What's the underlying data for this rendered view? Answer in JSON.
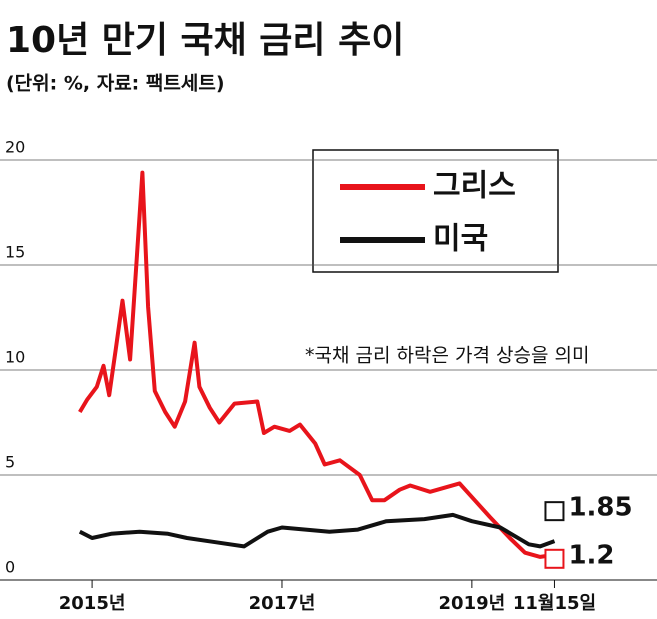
{
  "chart_data": {
    "type": "line",
    "title": "10년 만기 국채 금리 추이",
    "subtitle": "(단위: %, 자료: 팩트세트)",
    "annotation": "*국채 금리 하락은 가격 상승을 의미",
    "xlim": [
      2014.03,
      2020.95
    ],
    "ylim": [
      0,
      20
    ],
    "yticks": [
      0,
      5,
      10,
      15,
      20
    ],
    "xticks": [
      {
        "value": 2015,
        "label": "2015년"
      },
      {
        "value": 2017,
        "label": "2017년"
      },
      {
        "value": 2019,
        "label": "2019년"
      },
      {
        "value": 2019.87,
        "label": "11월15일"
      }
    ],
    "grid": true,
    "series": [
      {
        "name": "그리스",
        "color": "#e8141b",
        "fill": "#f0f0f0",
        "x": [
          2014.87,
          2014.95,
          2015.05,
          2015.12,
          2015.18,
          2015.25,
          2015.32,
          2015.4,
          2015.53,
          2015.59,
          2015.66,
          2015.77,
          2015.87,
          2015.98,
          2016.08,
          2016.13,
          2016.24,
          2016.34,
          2016.5,
          2016.74,
          2016.81,
          2016.92,
          2017.08,
          2017.19,
          2017.35,
          2017.45,
          2017.61,
          2017.82,
          2017.95,
          2018.08,
          2018.24,
          2018.35,
          2018.56,
          2018.87,
          2019.03,
          2019.19,
          2019.4,
          2019.56,
          2019.72,
          2019.87
        ],
        "values": [
          8.0,
          8.6,
          9.2,
          10.2,
          8.8,
          11.0,
          13.3,
          10.5,
          19.4,
          13.0,
          9.0,
          8.0,
          7.3,
          8.5,
          11.3,
          9.2,
          8.2,
          7.5,
          8.4,
          8.5,
          7.0,
          7.3,
          7.1,
          7.4,
          6.5,
          5.5,
          5.7,
          5.0,
          3.8,
          3.8,
          4.3,
          4.5,
          4.2,
          4.6,
          3.8,
          3.0,
          2.0,
          1.3,
          1.1,
          1.2
        ]
      },
      {
        "name": "미국",
        "color": "#111111",
        "x": [
          2014.87,
          2015.0,
          2015.2,
          2015.5,
          2015.8,
          2016.0,
          2016.3,
          2016.6,
          2016.85,
          2017.0,
          2017.5,
          2017.8,
          2018.1,
          2018.5,
          2018.8,
          2019.0,
          2019.3,
          2019.6,
          2019.72,
          2019.87
        ],
        "values": [
          2.3,
          2.0,
          2.2,
          2.3,
          2.2,
          2.0,
          1.8,
          1.6,
          2.3,
          2.5,
          2.3,
          2.4,
          2.8,
          2.9,
          3.1,
          2.8,
          2.5,
          1.7,
          1.6,
          1.85
        ]
      }
    ]
  }
}
